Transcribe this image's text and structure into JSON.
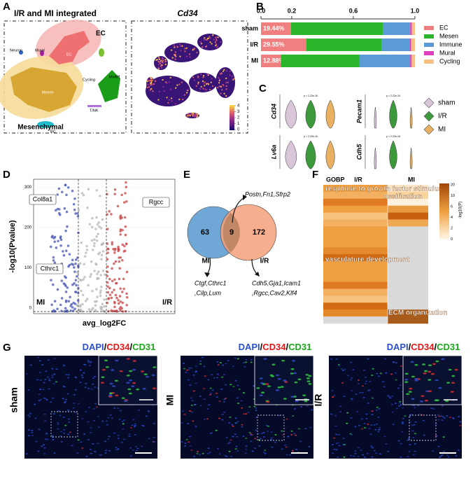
{
  "panels": [
    "A",
    "B",
    "C",
    "D",
    "E",
    "F",
    "G"
  ],
  "panel_a": {
    "title_left": "I/R and MI integrated",
    "title_right": "Cd34",
    "group_labels": [
      "EC",
      "Mesenchymal"
    ],
    "clusters": [
      "EC",
      "Mesen",
      "Neuron",
      "Mural",
      "Cycling",
      "Mo/Mf",
      "T/NK",
      "BC"
    ],
    "colorbar_ticks": [
      4,
      3,
      2,
      1,
      0
    ]
  },
  "chart_data": {
    "type": "bar",
    "stacked": true,
    "orientation": "horizontal",
    "categories": [
      "sham",
      "I/R",
      "MI"
    ],
    "xlim": [
      0,
      1
    ],
    "xticks": [
      {
        "value": 0,
        "label": "0.0"
      },
      0.2,
      0.6,
      {
        "value": 1,
        "label": "1.0"
      }
    ],
    "series": [
      {
        "name": "EC",
        "color": "#f08080",
        "values": [
          0.1944,
          0.2955,
          0.1288
        ],
        "value_labels": [
          "19.44%",
          "29.55%",
          "12.88%"
        ]
      },
      {
        "name": "Mesen",
        "color": "#2bb52b",
        "values": [
          0.6,
          0.49,
          0.51
        ]
      },
      {
        "name": "Immune",
        "color": "#5b9bd5",
        "values": [
          0.175,
          0.18,
          0.33
        ]
      },
      {
        "name": "Mural",
        "color": "#e040c0",
        "values": [
          0.01,
          0.01,
          0.01
        ]
      },
      {
        "name": "Cycling",
        "color": "#f5c085",
        "values": [
          0.0206,
          0.0245,
          0.0212
        ]
      }
    ]
  },
  "panel_c": {
    "genes": [
      "Cd34",
      "Pecam1",
      "Lv6a",
      "Cdh5"
    ],
    "pvalue": "p < 2.22e-16",
    "legend": [
      {
        "name": "sham",
        "color": "#d9c6d9"
      },
      {
        "name": "I/R",
        "color": "#3c9a3c"
      },
      {
        "name": "MI",
        "color": "#e8b060"
      }
    ]
  },
  "panel_d": {
    "ylabel": "-log10(Pvalue)",
    "xlabel": "avg_log2FC",
    "yticks": [
      0,
      100,
      200,
      300
    ],
    "genes": [
      "Col8a1",
      "Rgcc",
      "Cthrc1"
    ],
    "groups": [
      "MI",
      "I/R"
    ]
  },
  "panel_e": {
    "left_count": "63",
    "overlap_count": "9",
    "right_count": "172",
    "left_label": "MI",
    "right_label": "I/R",
    "overlap_genes": "Postn,Fn1,Sfrp2",
    "left_genes": [
      "Ctgf,Cthrc1",
      ",Cilp,Lum"
    ],
    "right_genes": [
      "Cdh5,Gja1,Icam1",
      ",Rgcc,Cav2,Klf4"
    ]
  },
  "panel_f": {
    "header": [
      "GOBP",
      "I/R",
      "MI"
    ],
    "terms": [
      "response to growth factor stimulus",
      "ossification",
      "vasculature development",
      "ECM organization"
    ],
    "colorbar_title": "-log10(P)",
    "colorbar_ticks": [
      20,
      10,
      6,
      4,
      2,
      0
    ]
  },
  "panel_g": {
    "stains": [
      "DAPI",
      "CD34",
      "CD31"
    ],
    "separator": "/",
    "conditions": [
      "sham",
      "MI",
      "I/R"
    ]
  }
}
